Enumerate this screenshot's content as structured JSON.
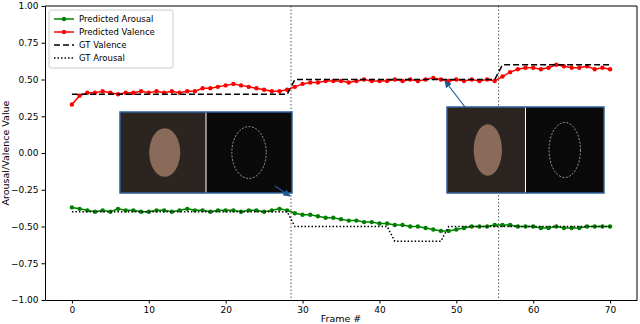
{
  "chart_data": {
    "type": "line",
    "x_label": "Frame #",
    "y_label": "Arousal/Valence Value",
    "xlim": [
      -3.5,
      73.5
    ],
    "ylim": [
      -1,
      1
    ],
    "xticks": [
      0,
      10,
      20,
      30,
      40,
      50,
      60,
      70
    ],
    "yticks": [
      {
        "value": -1,
        "label": "−1.00"
      },
      {
        "value": -0.75,
        "label": "−0.75"
      },
      {
        "value": -0.5,
        "label": "−0.50"
      },
      {
        "value": -0.25,
        "label": "−0.25"
      },
      {
        "value": 0,
        "label": "0.00"
      },
      {
        "value": 0.25,
        "label": "0.25"
      },
      {
        "value": 0.5,
        "label": "0.50"
      },
      {
        "value": 0.75,
        "label": "0.75"
      },
      {
        "value": 1,
        "label": "1.00"
      }
    ],
    "grid": false,
    "legend": "upper left",
    "vertical_lines": [
      28.5,
      55.5
    ],
    "x": [
      0,
      1,
      2,
      3,
      4,
      5,
      6,
      7,
      8,
      9,
      10,
      11,
      12,
      13,
      14,
      15,
      16,
      17,
      18,
      19,
      20,
      21,
      22,
      23,
      24,
      25,
      26,
      27,
      28,
      29,
      30,
      31,
      32,
      33,
      34,
      35,
      36,
      37,
      38,
      39,
      40,
      41,
      42,
      43,
      44,
      45,
      46,
      47,
      48,
      49,
      50,
      51,
      52,
      53,
      54,
      55,
      56,
      57,
      58,
      59,
      60,
      61,
      62,
      63,
      64,
      65,
      66,
      67,
      68,
      69,
      70
    ],
    "series": [
      {
        "name": "Predicted Arousal",
        "color": "green",
        "marker": "o",
        "line_style": "solid",
        "values": [
          -0.37,
          -0.38,
          -0.39,
          -0.4,
          -0.39,
          -0.4,
          -0.38,
          -0.39,
          -0.39,
          -0.4,
          -0.4,
          -0.39,
          -0.39,
          -0.4,
          -0.39,
          -0.38,
          -0.39,
          -0.39,
          -0.4,
          -0.39,
          -0.39,
          -0.39,
          -0.4,
          -0.39,
          -0.39,
          -0.4,
          -0.39,
          -0.38,
          -0.39,
          -0.41,
          -0.42,
          -0.42,
          -0.43,
          -0.44,
          -0.44,
          -0.45,
          -0.46,
          -0.46,
          -0.47,
          -0.47,
          -0.48,
          -0.48,
          -0.49,
          -0.49,
          -0.5,
          -0.5,
          -0.51,
          -0.52,
          -0.53,
          -0.53,
          -0.52,
          -0.51,
          -0.5,
          -0.5,
          -0.5,
          -0.49,
          -0.49,
          -0.49,
          -0.5,
          -0.5,
          -0.5,
          -0.51,
          -0.51,
          -0.5,
          -0.51,
          -0.51,
          -0.51,
          -0.5,
          -0.5,
          -0.5,
          -0.5
        ]
      },
      {
        "name": "Predicted Valence",
        "color": "red",
        "marker": "o",
        "line_style": "solid",
        "values": [
          0.33,
          0.39,
          0.41,
          0.41,
          0.42,
          0.41,
          0.4,
          0.41,
          0.41,
          0.42,
          0.41,
          0.42,
          0.41,
          0.42,
          0.41,
          0.42,
          0.42,
          0.44,
          0.44,
          0.45,
          0.46,
          0.47,
          0.46,
          0.45,
          0.44,
          0.43,
          0.42,
          0.42,
          0.43,
          0.45,
          0.47,
          0.48,
          0.48,
          0.49,
          0.49,
          0.49,
          0.48,
          0.49,
          0.5,
          0.49,
          0.49,
          0.49,
          0.5,
          0.49,
          0.5,
          0.49,
          0.5,
          0.51,
          0.5,
          0.49,
          0.5,
          0.49,
          0.5,
          0.49,
          0.5,
          0.49,
          0.52,
          0.55,
          0.57,
          0.58,
          0.58,
          0.57,
          0.58,
          0.6,
          0.59,
          0.58,
          0.58,
          0.59,
          0.57,
          0.58,
          0.57
        ]
      },
      {
        "name": "GT Valence",
        "color": "black",
        "marker": "none",
        "line_style": "dashed",
        "values": [
          0.4,
          0.4,
          0.4,
          0.4,
          0.4,
          0.4,
          0.4,
          0.4,
          0.4,
          0.4,
          0.4,
          0.4,
          0.4,
          0.4,
          0.4,
          0.4,
          0.4,
          0.4,
          0.4,
          0.4,
          0.4,
          0.4,
          0.4,
          0.4,
          0.4,
          0.4,
          0.4,
          0.4,
          0.4,
          0.5,
          0.5,
          0.5,
          0.5,
          0.5,
          0.5,
          0.5,
          0.5,
          0.5,
          0.5,
          0.5,
          0.5,
          0.5,
          0.5,
          0.5,
          0.5,
          0.5,
          0.5,
          0.5,
          0.5,
          0.5,
          0.5,
          0.5,
          0.5,
          0.5,
          0.5,
          0.5,
          0.6,
          0.6,
          0.6,
          0.6,
          0.6,
          0.6,
          0.6,
          0.6,
          0.6,
          0.6,
          0.6,
          0.6,
          0.6,
          0.6,
          0.6
        ]
      },
      {
        "name": "GT Arousal",
        "color": "black",
        "marker": "none",
        "line_style": "dotted",
        "values": [
          -0.4,
          -0.4,
          -0.4,
          -0.4,
          -0.4,
          -0.4,
          -0.4,
          -0.4,
          -0.4,
          -0.4,
          -0.4,
          -0.4,
          -0.4,
          -0.4,
          -0.4,
          -0.4,
          -0.4,
          -0.4,
          -0.4,
          -0.4,
          -0.4,
          -0.4,
          -0.4,
          -0.4,
          -0.4,
          -0.4,
          -0.4,
          -0.4,
          -0.4,
          -0.5,
          -0.5,
          -0.5,
          -0.5,
          -0.5,
          -0.5,
          -0.5,
          -0.5,
          -0.5,
          -0.5,
          -0.5,
          -0.5,
          -0.5,
          -0.6,
          -0.6,
          -0.6,
          -0.6,
          -0.6,
          -0.6,
          -0.6,
          -0.5,
          -0.5,
          -0.5,
          -0.5,
          -0.5,
          -0.5,
          -0.5,
          -0.5,
          -0.5,
          -0.5,
          -0.5,
          -0.5,
          -0.5,
          -0.5,
          -0.5,
          -0.5,
          -0.5,
          -0.5,
          -0.5,
          -0.5,
          -0.5,
          -0.5
        ]
      }
    ]
  }
}
